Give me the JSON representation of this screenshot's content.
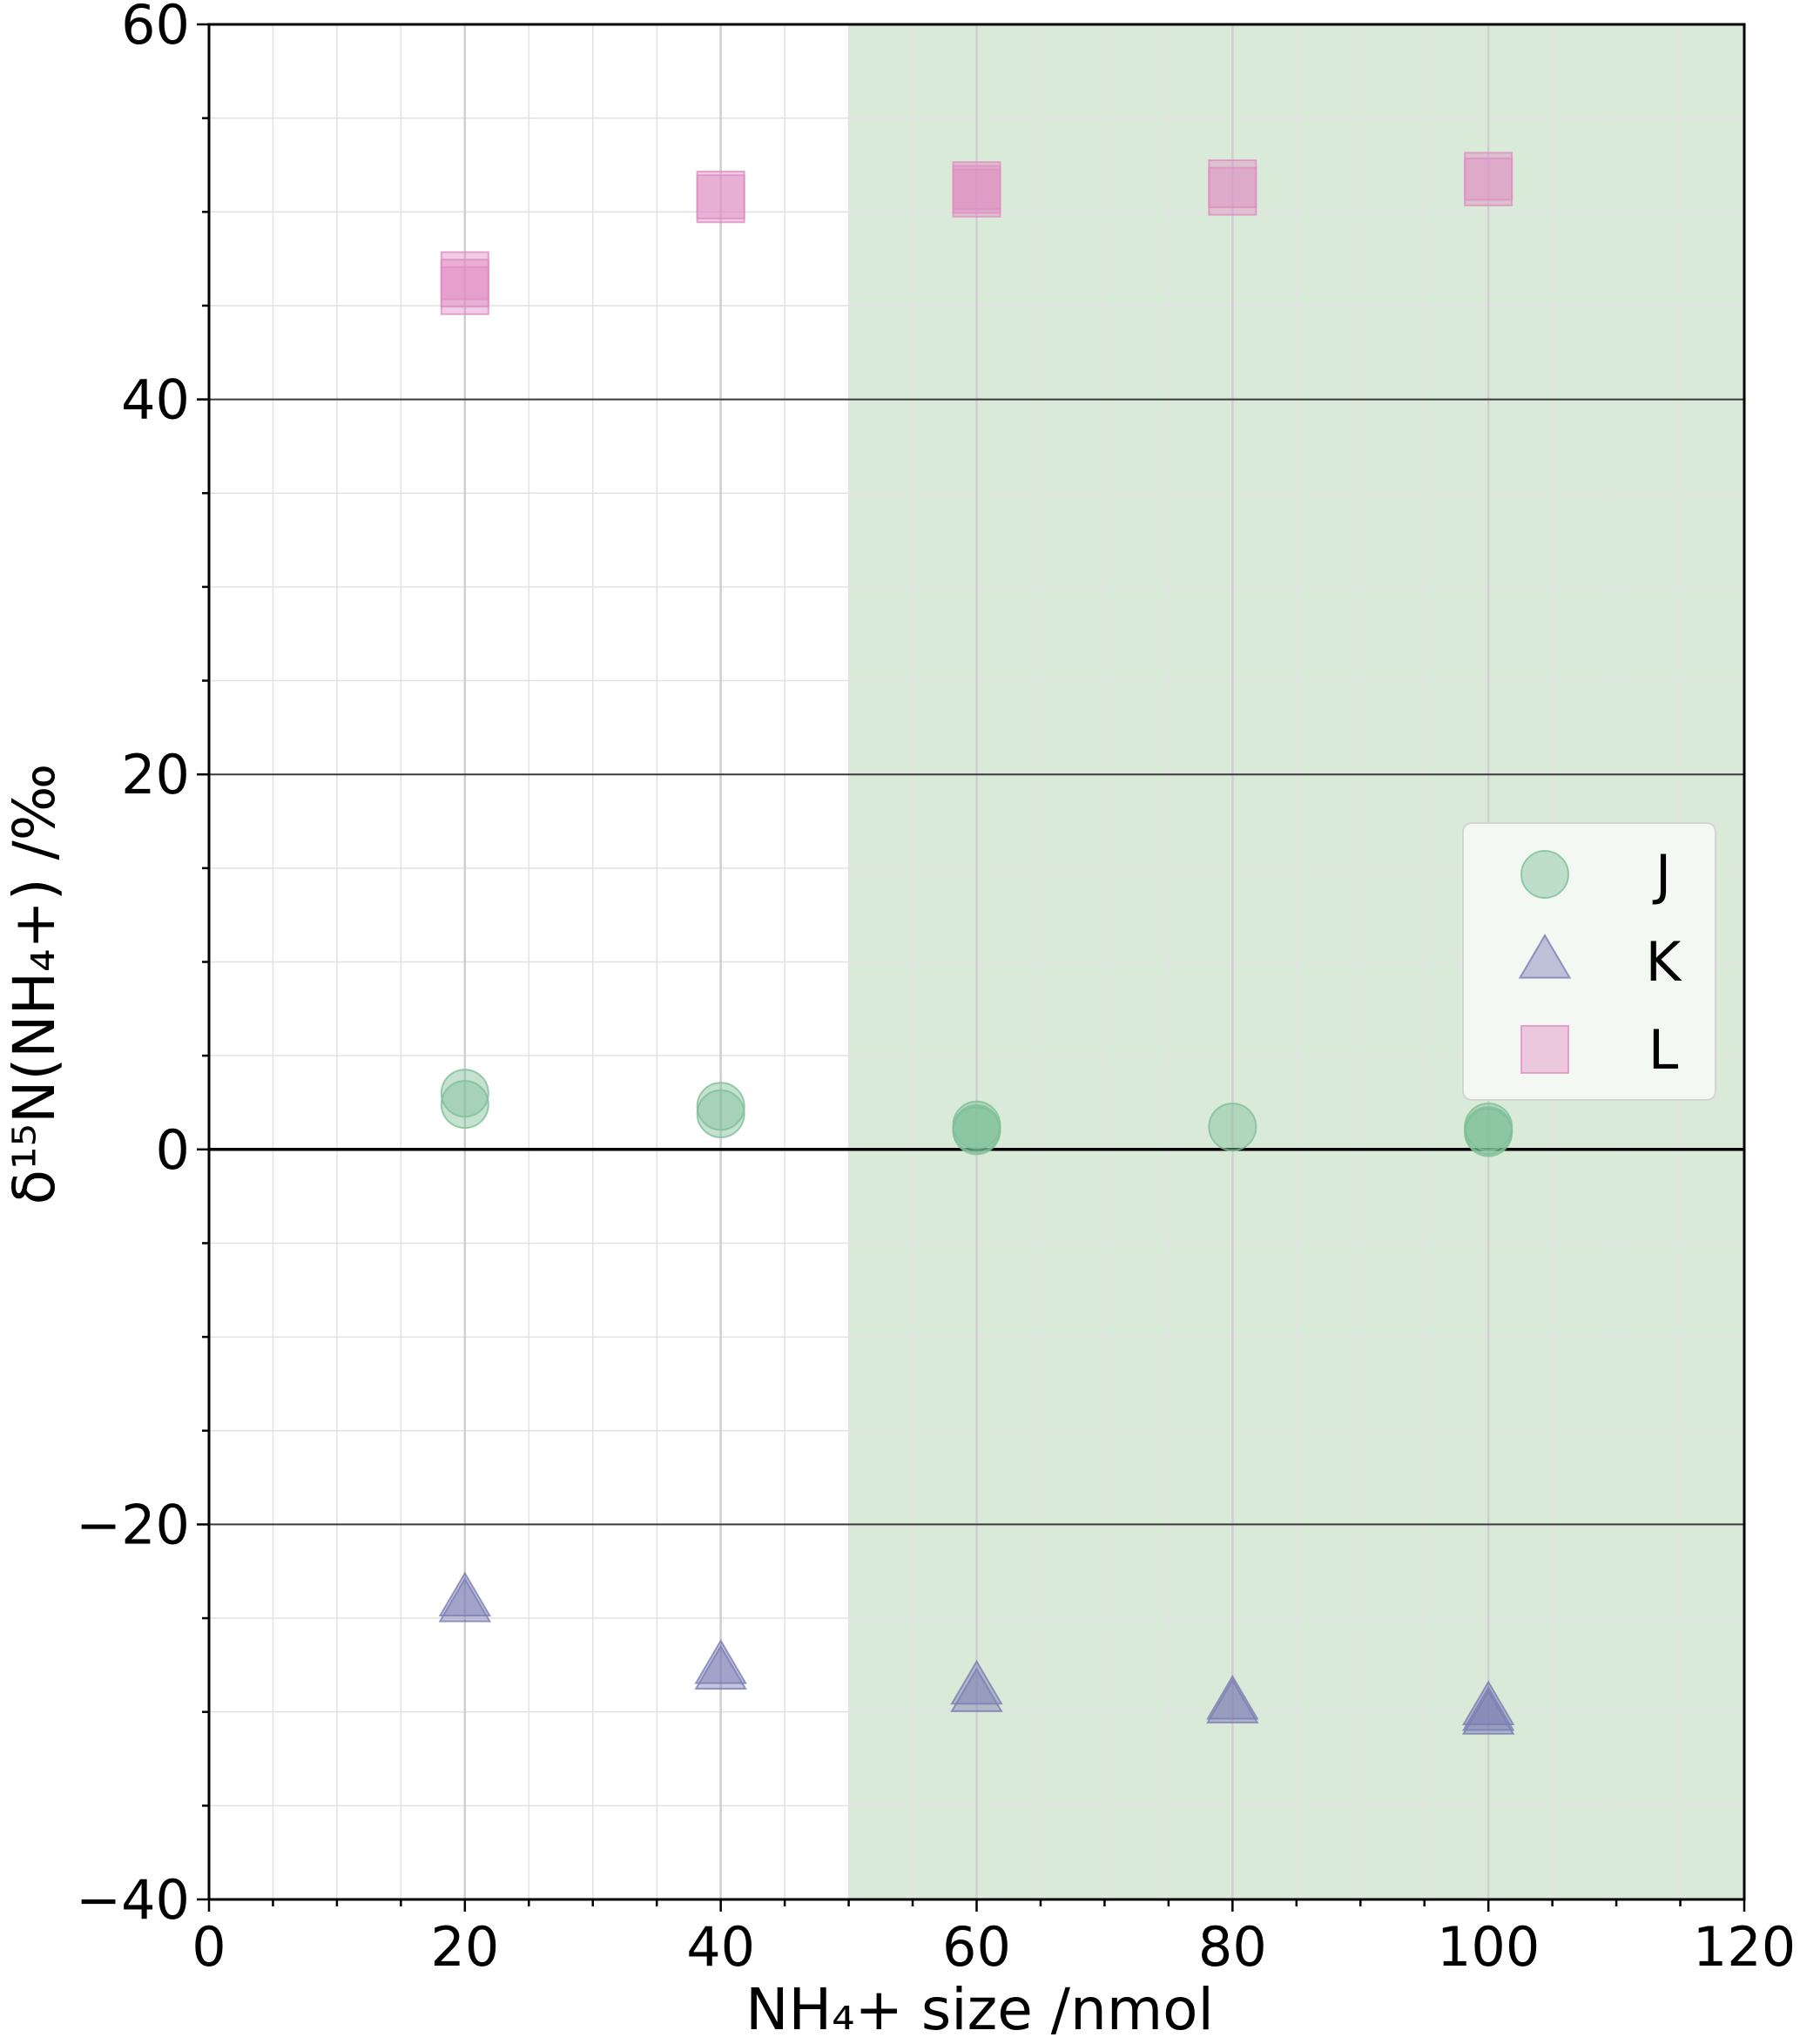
{
  "chart_data": {
    "type": "scatter",
    "xlabel": "NH₄+ size /nmol",
    "ylabel": "δ¹⁵N(NH₄+) /‰",
    "xlim": [
      0,
      120
    ],
    "ylim": [
      -40,
      60
    ],
    "x_ticks": [
      "0",
      "20",
      "40",
      "60",
      "80",
      "100",
      "120"
    ],
    "y_ticks": [
      "−40",
      "−20",
      "0",
      "20",
      "40",
      "60"
    ],
    "shaded_region": {
      "x": [
        50,
        120
      ],
      "color": "#d9ebd8"
    },
    "grid": true,
    "legend_position": "right",
    "series": [
      {
        "name": "J",
        "marker": "circle",
        "color": "#7fbf98",
        "points": [
          [
            20,
            3.0
          ],
          [
            20,
            2.4
          ],
          [
            40,
            2.3
          ],
          [
            40,
            1.9
          ],
          [
            60,
            1.3
          ],
          [
            60,
            1.0
          ],
          [
            60,
            1.1
          ],
          [
            80,
            1.2
          ],
          [
            100,
            1.2
          ],
          [
            100,
            0.9
          ],
          [
            100,
            1.0
          ]
        ]
      },
      {
        "name": "K",
        "marker": "triangle",
        "color": "#7a7db3",
        "points": [
          [
            20,
            -24.0
          ],
          [
            20,
            -24.3
          ],
          [
            40,
            -27.6
          ],
          [
            40,
            -27.9
          ],
          [
            60,
            -28.7
          ],
          [
            60,
            -29.1
          ],
          [
            80,
            -29.5
          ],
          [
            80,
            -29.7
          ],
          [
            100,
            -29.8
          ],
          [
            100,
            -30.3
          ],
          [
            100,
            -30.1
          ]
        ]
      },
      {
        "name": "L",
        "marker": "square",
        "color": "#e08ec4",
        "points": [
          [
            20,
            46.2
          ],
          [
            20,
            46.6
          ],
          [
            20,
            45.8
          ],
          [
            40,
            50.9
          ],
          [
            40,
            50.7
          ],
          [
            60,
            51.4
          ],
          [
            60,
            51.0
          ],
          [
            60,
            51.2
          ],
          [
            80,
            51.5
          ],
          [
            80,
            51.1
          ],
          [
            100,
            51.9
          ],
          [
            100,
            51.6
          ]
        ]
      }
    ]
  }
}
